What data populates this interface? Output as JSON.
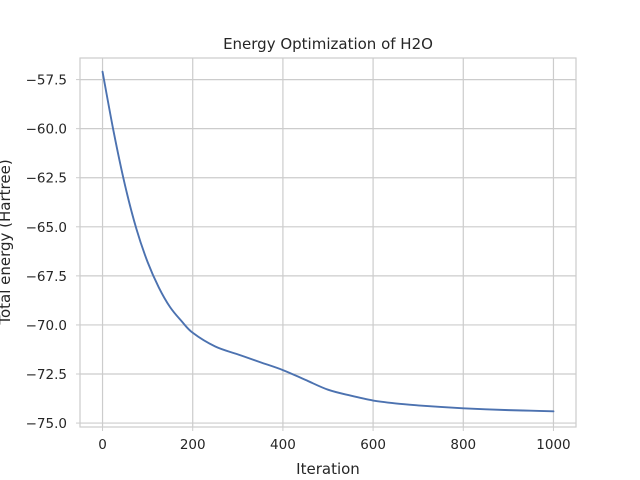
{
  "chart_data": {
    "type": "line",
    "title": "Energy Optimization of H2O",
    "xlabel": "Iteration",
    "ylabel": "Total energy (Hartree)",
    "xlim": [
      -50,
      1050
    ],
    "ylim": [
      -75.2,
      -56.4
    ],
    "xticks": [
      0,
      200,
      400,
      600,
      800,
      1000
    ],
    "xtick_labels": [
      "0",
      "200",
      "400",
      "600",
      "800",
      "1000"
    ],
    "yticks": [
      -57.5,
      -60.0,
      -62.5,
      -65.0,
      -67.5,
      -70.0,
      -72.5,
      -75.0
    ],
    "ytick_labels": [
      "−57.5",
      "−60.0",
      "−62.5",
      "−65.0",
      "−67.5",
      "−70.0",
      "−72.5",
      "−75.0"
    ],
    "grid": true,
    "series": [
      {
        "color": "#4c72b0",
        "x": [
          0,
          25,
          50,
          75,
          100,
          125,
          150,
          175,
          200,
          250,
          300,
          350,
          400,
          450,
          500,
          550,
          600,
          650,
          700,
          750,
          800,
          850,
          900,
          950,
          1000
        ],
        "y": [
          -57.1,
          -60.2,
          -62.9,
          -65.1,
          -66.8,
          -68.1,
          -69.1,
          -69.8,
          -70.4,
          -71.1,
          -71.5,
          -71.9,
          -72.3,
          -72.8,
          -73.3,
          -73.6,
          -73.85,
          -74.0,
          -74.1,
          -74.18,
          -74.25,
          -74.3,
          -74.34,
          -74.37,
          -74.4
        ]
      }
    ]
  }
}
